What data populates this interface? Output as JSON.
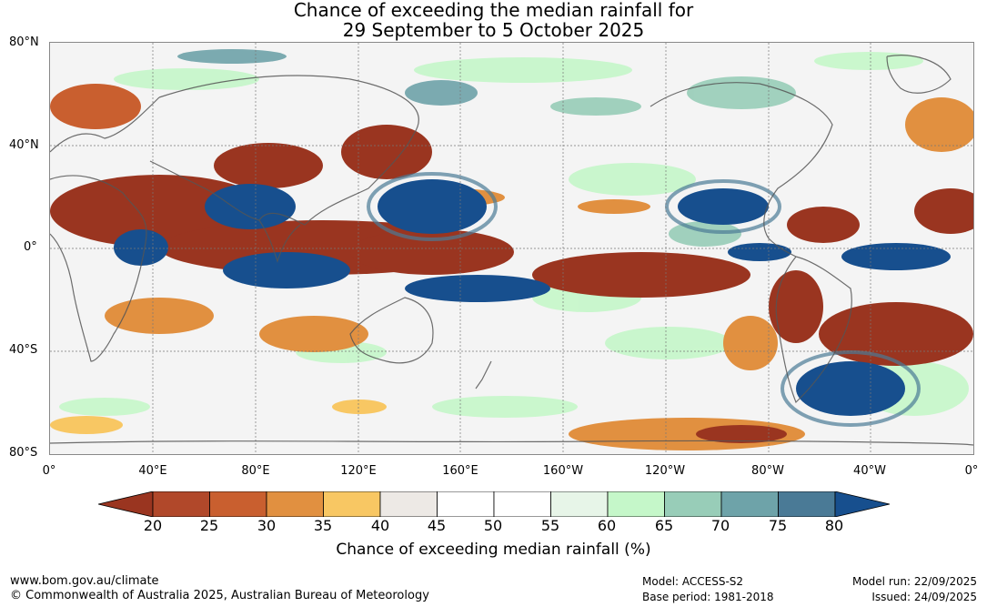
{
  "title": {
    "line1": "Chance of exceeding the median rainfall for",
    "line2": "29 September to 5 October 2025"
  },
  "lat_labels": [
    "80°N",
    "40°N",
    "0°",
    "40°S",
    "80°S"
  ],
  "lon_labels": [
    "0°",
    "40°E",
    "80°E",
    "120°E",
    "160°E",
    "160°W",
    "120°W",
    "80°W",
    "40°W",
    "0°"
  ],
  "colorbar": {
    "ticks": [
      "20",
      "25",
      "30",
      "35",
      "40",
      "45",
      "50",
      "55",
      "60",
      "65",
      "70",
      "75",
      "80"
    ],
    "colors": [
      "#9a3520",
      "#b1482a",
      "#c95f2f",
      "#e19040",
      "#f8c763",
      "#ede9e5",
      "#ffffff",
      "#ffffff",
      "#e7f5e8",
      "#c5f7c9",
      "#98cdb8",
      "#6ea3a9",
      "#4a7a96",
      "#174f8e"
    ],
    "title": "Chance of exceeding median rainfall (%)"
  },
  "footer": {
    "url": "www.bom.gov.au/climate",
    "copyright": "© Commonwealth of Australia 2025, Australian Bureau of Meteorology",
    "model": "Model: ACCESS-S2",
    "base_period": "Base period: 1981-2018",
    "model_run": "Model run: 22/09/2025",
    "issued": "Issued: 24/09/2025"
  }
}
